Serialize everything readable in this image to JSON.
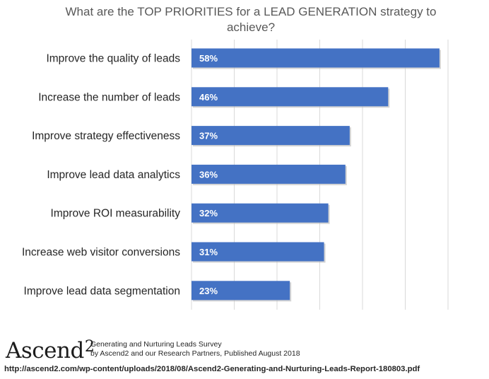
{
  "chart_data": {
    "type": "bar",
    "orientation": "horizontal",
    "title": "What are the TOP PRIORITIES for a LEAD GENERATION strategy to achieve?",
    "categories": [
      "Improve the quality of leads",
      "Increase the number of leads",
      "Improve strategy effectiveness",
      "Improve lead data analytics",
      "Improve ROI measurability",
      "Increase web visitor conversions",
      "Improve lead data segmentation"
    ],
    "values": [
      58,
      46,
      37,
      36,
      32,
      31,
      23
    ],
    "value_labels": [
      "58%",
      "46%",
      "37%",
      "36%",
      "32%",
      "31%",
      "23%"
    ],
    "unit": "%",
    "xlim": [
      0,
      60
    ],
    "grid": true,
    "bar_color": "#4472c4"
  },
  "footer": {
    "logo_text": "Ascend",
    "logo_number": "2",
    "survey_line1": "Generating and Nurturing Leads Survey",
    "survey_line2": "by Ascend2 and our Research Partners, Published August 2018",
    "url": "http://ascend2.com/wp-content/uploads/2018/08/Ascend2-Generating-and-Nurturing-Leads-Report-180803.pdf"
  }
}
